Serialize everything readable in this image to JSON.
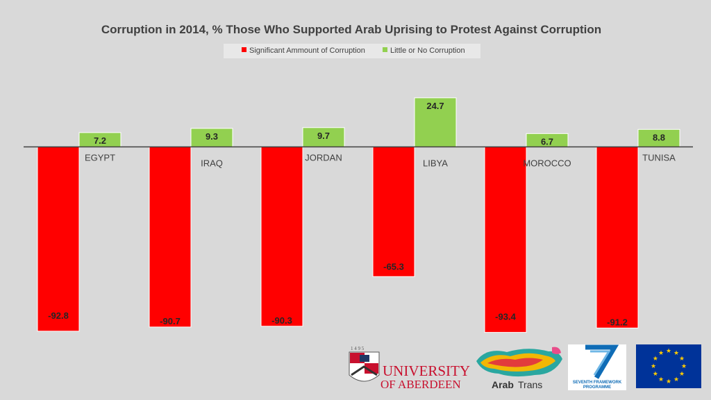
{
  "chart_data": {
    "type": "bar",
    "title": "Corruption in 2014, % Those Who Supported Arab Uprising to Protest Against Corruption",
    "categories": [
      "EGYPT",
      "IRAQ",
      "JORDAN",
      "LIBYA",
      "MOROCCO",
      "TUNISA"
    ],
    "series": [
      {
        "name": "Significant Ammount of Corruption",
        "color": "#ff0000",
        "values": [
          -92.8,
          -90.7,
          -90.3,
          -65.3,
          -93.4,
          -91.2
        ]
      },
      {
        "name": "Little or No Corruption",
        "color": "#92d050",
        "values": [
          7.2,
          9.3,
          9.7,
          24.7,
          6.7,
          8.8
        ]
      }
    ],
    "legend_position": "top-center",
    "grid": false
  },
  "logos": {
    "aberdeen": {
      "year": "1 4 9 5",
      "line1": "UNIVERSITY",
      "line2": "OF ABERDEEN"
    },
    "arabtrans": {
      "text_bold": "Arab",
      "text_light": "Trans"
    },
    "fp7": {
      "line1": "SEVENTH FRAMEWORK",
      "line2": "PROGRAMME"
    },
    "eu_flag": {
      "color": "#003399",
      "star_color": "#ffcc00"
    }
  }
}
